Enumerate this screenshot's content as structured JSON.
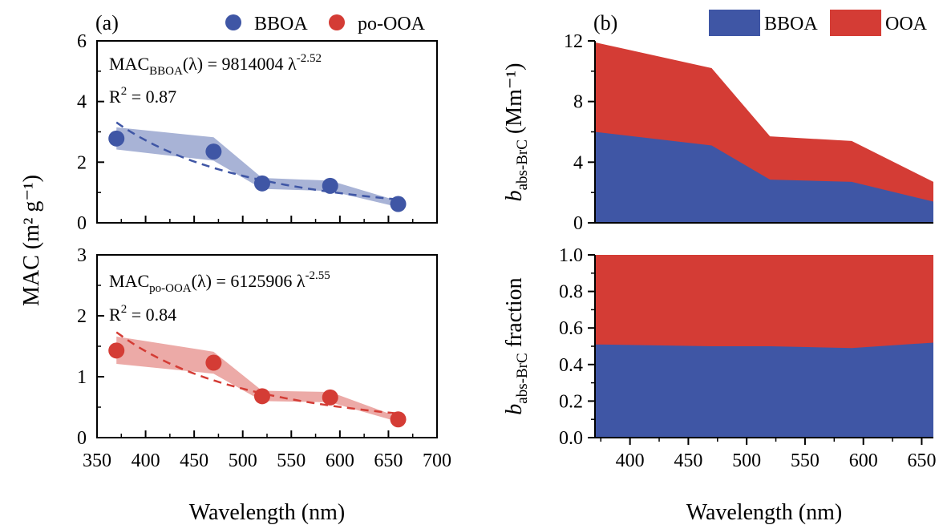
{
  "colors": {
    "bboa": "#3f56a5",
    "bboa_band": "#a8b3d6",
    "poooa": "#d43c35",
    "poooa_band": "#ecaaa7",
    "ooa": "#d43c35"
  },
  "panel_a": {
    "label": "(a)",
    "legend": [
      "BBOA",
      "po-OOA"
    ],
    "ylabel": "MAC (m² g⁻¹)",
    "xlabel": "Wavelength (nm)"
  },
  "panel_b": {
    "label": "(b)",
    "legend": [
      "BBOA",
      "OOA"
    ],
    "ylabel_top": "b",
    "ylabel_top_sub": "abs-BrC",
    "ylabel_top_rest": " (Mm⁻¹)",
    "ylabel_bottom": "b",
    "ylabel_bottom_sub": "abs-BrC",
    "ylabel_bottom_rest": " fraction",
    "xlabel": "Wavelength (nm)"
  },
  "chart_data": [
    {
      "type": "scatter",
      "panel": "a-top",
      "series": [
        {
          "name": "BBOA",
          "x": [
            370,
            470,
            520,
            590,
            660
          ],
          "values": [
            2.78,
            2.35,
            1.3,
            1.22,
            0.62
          ],
          "band_low": [
            2.42,
            2.05,
            1.12,
            1.05,
            0.52
          ],
          "band_high": [
            3.15,
            2.82,
            1.48,
            1.39,
            0.72
          ]
        }
      ],
      "fit": {
        "coef": 9814004,
        "exp": -2.52
      },
      "eq_prefix": "MAC",
      "eq_sub": "BBOA",
      "eq_rest": "(λ) = 9814004 λ",
      "eq_sup": "-2.52",
      "r2_prefix": "R",
      "r2_sup": "2",
      "r2_rest": " = 0.87",
      "ylim": [
        0,
        6
      ],
      "yticks": [
        "0",
        "2",
        "4",
        "6"
      ],
      "xlim": [
        350,
        700
      ]
    },
    {
      "type": "scatter",
      "panel": "a-bottom",
      "series": [
        {
          "name": "po-OOA",
          "x": [
            370,
            470,
            520,
            590,
            660
          ],
          "values": [
            1.43,
            1.23,
            0.68,
            0.66,
            0.3
          ],
          "band_low": [
            1.21,
            1.05,
            0.6,
            0.58,
            0.26
          ],
          "band_high": [
            1.66,
            1.41,
            0.77,
            0.75,
            0.34
          ]
        }
      ],
      "fit": {
        "coef": 6125906,
        "exp": -2.55
      },
      "eq_prefix": "MAC",
      "eq_sub": "po-OOA",
      "eq_rest": "(λ) = 6125906 λ",
      "eq_sup": "-2.55",
      "r2_prefix": "R",
      "r2_sup": "2",
      "r2_rest": " = 0.84",
      "ylim": [
        0,
        3
      ],
      "yticks": [
        "0",
        "1",
        "2",
        "3"
      ],
      "xlim": [
        350,
        700
      ],
      "xticks": [
        "350",
        "400",
        "450",
        "500",
        "550",
        "600",
        "650",
        "700"
      ]
    },
    {
      "type": "area",
      "panel": "b-top",
      "x": [
        370,
        470,
        520,
        590,
        660
      ],
      "series": [
        {
          "name": "BBOA",
          "values": [
            6.0,
            5.1,
            2.85,
            2.7,
            1.4
          ]
        },
        {
          "name": "OOA",
          "values": [
            5.9,
            5.1,
            2.85,
            2.7,
            1.3
          ]
        }
      ],
      "stacked": true,
      "ylim": [
        0,
        12
      ],
      "yticks": [
        "0",
        "4",
        "8",
        "12"
      ],
      "xlim": [
        370,
        660
      ]
    },
    {
      "type": "area",
      "panel": "b-bottom",
      "x": [
        370,
        470,
        520,
        590,
        660
      ],
      "series": [
        {
          "name": "BBOA",
          "values": [
            0.51,
            0.5,
            0.5,
            0.49,
            0.52
          ]
        },
        {
          "name": "OOA",
          "values": [
            0.49,
            0.5,
            0.5,
            0.51,
            0.48
          ]
        }
      ],
      "stacked": true,
      "ylim": [
        0,
        1.0
      ],
      "yticks": [
        "0.0",
        "0.2",
        "0.4",
        "0.6",
        "0.8",
        "1.0"
      ],
      "xlim": [
        370,
        660
      ],
      "xticks": [
        "400",
        "450",
        "500",
        "550",
        "600",
        "650"
      ]
    }
  ]
}
